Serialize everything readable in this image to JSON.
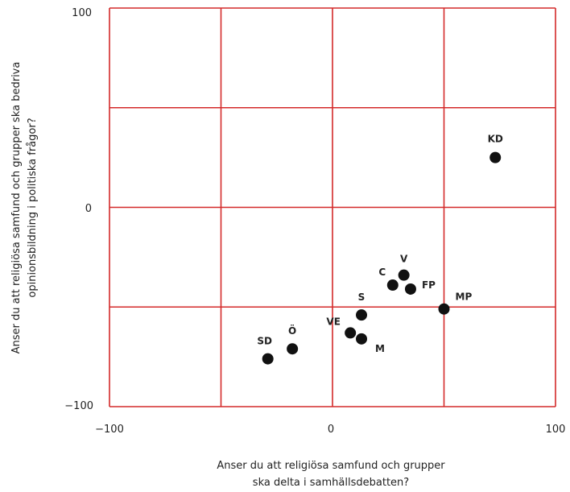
{
  "chart_data": {
    "type": "scatter",
    "xlabel_lines": [
      "Anser du att religiösa samfund och grupper",
      "ska delta i samhällsdebatten?"
    ],
    "ylabel_lines": [
      "Anser du att religiösa samfund och grupper ska bedriva",
      "opinionsbildning i politiska frågor?"
    ],
    "xlim": [
      -100,
      100
    ],
    "ylim": [
      -100,
      100
    ],
    "x_ticks": [
      "−100",
      "0",
      "100"
    ],
    "y_ticks": [
      "100",
      "0",
      "−100"
    ],
    "grid": true,
    "grid_color": "#d42a2a",
    "point_color": "#111111",
    "points": [
      {
        "label": "KD",
        "x": 73,
        "y": 25
      },
      {
        "label": "V",
        "x": 32,
        "y": -34
      },
      {
        "label": "C",
        "x": 27,
        "y": -39
      },
      {
        "label": "FP",
        "x": 35,
        "y": -41
      },
      {
        "label": "MP",
        "x": 50,
        "y": -51
      },
      {
        "label": "S",
        "x": 13,
        "y": -54
      },
      {
        "label": "VE",
        "x": 8,
        "y": -63
      },
      {
        "label": "M",
        "x": 13,
        "y": -66
      },
      {
        "label": "Ö",
        "x": -18,
        "y": -71
      },
      {
        "label": "SD",
        "x": -29,
        "y": -76
      }
    ]
  }
}
